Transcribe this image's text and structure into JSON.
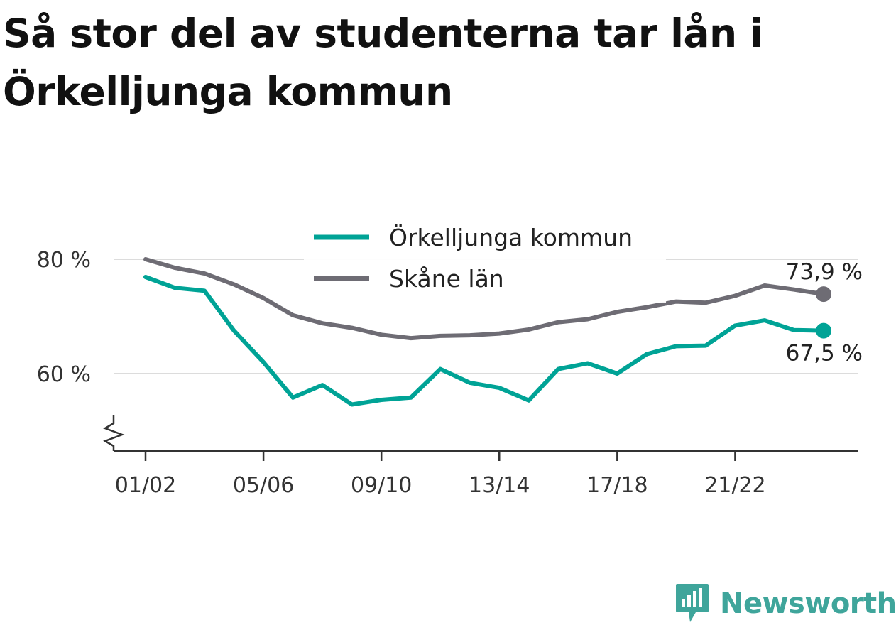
{
  "title": "Så stor del av studenterna tar lån i Örkelljunga kommun",
  "brand": {
    "name": "Newsworthy",
    "icon": "newsworthy-logo-icon",
    "color": "#3fa59b"
  },
  "chart_data": {
    "type": "line",
    "title": "Så stor del av studenterna tar lån i Örkelljunga kommun",
    "xlabel": "",
    "ylabel": "",
    "x": [
      "01/02",
      "02/03",
      "03/04",
      "04/05",
      "05/06",
      "06/07",
      "07/08",
      "08/09",
      "09/10",
      "10/11",
      "11/12",
      "12/13",
      "13/14",
      "14/15",
      "15/16",
      "16/17",
      "17/18",
      "18/19",
      "19/20",
      "20/21",
      "21/22",
      "22/23",
      "23/24",
      "24/25"
    ],
    "x_tick_labels": [
      "01/02",
      "05/06",
      "09/10",
      "13/14",
      "17/18",
      "21/22"
    ],
    "y_tick_labels": [
      "80 %",
      "60 %"
    ],
    "y_ticks": [
      80,
      60
    ],
    "ylim": [
      46.5,
      82
    ],
    "y_axis_break": true,
    "grid": true,
    "legend_position": "top-center",
    "series": [
      {
        "name": "Örkelljunga kommun",
        "color": "#00a396",
        "values": [
          76.9,
          75.0,
          74.5,
          67.5,
          62.0,
          55.8,
          58.0,
          54.6,
          55.4,
          55.8,
          60.8,
          58.4,
          57.5,
          55.3,
          60.8,
          61.8,
          60.0,
          63.4,
          64.8,
          64.9,
          68.4,
          69.3,
          67.6,
          67.5
        ],
        "end_label": "67,5 %"
      },
      {
        "name": "Skåne län",
        "color": "#6e6c74",
        "values": [
          80.0,
          78.5,
          77.5,
          75.6,
          73.2,
          70.2,
          68.8,
          68.0,
          66.8,
          66.2,
          66.6,
          66.7,
          67.0,
          67.7,
          69.0,
          69.5,
          70.8,
          71.6,
          72.6,
          72.4,
          73.6,
          75.4,
          74.7,
          73.9
        ],
        "end_label": "73,9 %"
      }
    ]
  }
}
